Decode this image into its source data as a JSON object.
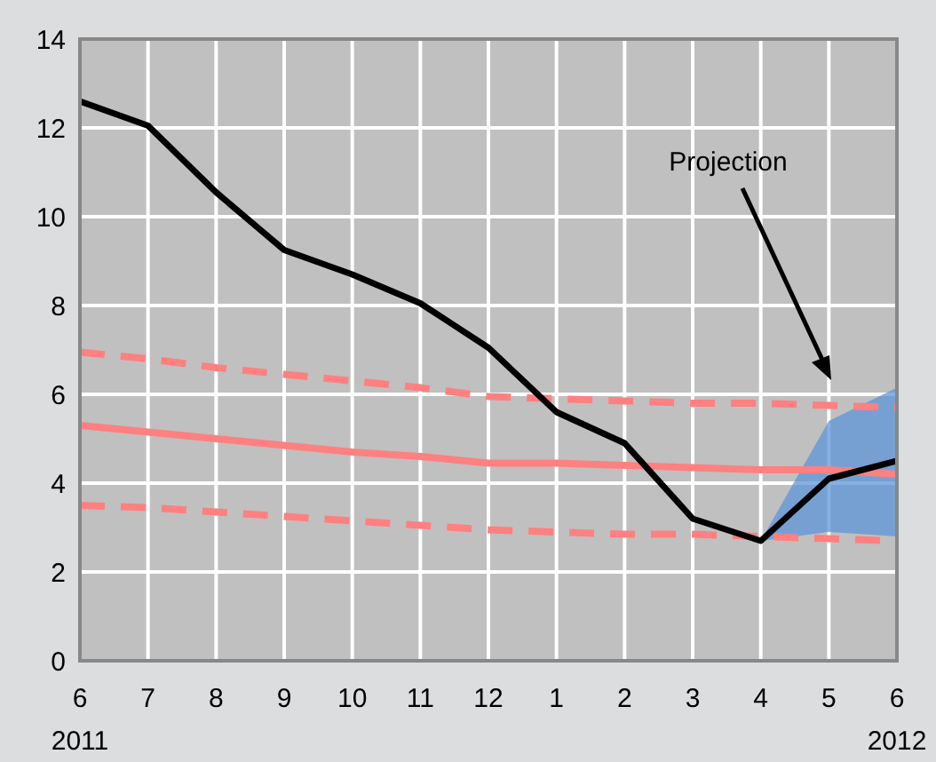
{
  "chart_data": {
    "type": "line",
    "categories": [
      "6\n2011",
      "7",
      "8",
      "9",
      "10",
      "11",
      "12",
      "1",
      "2",
      "3",
      "4",
      "5",
      "6\n2012"
    ],
    "series": [
      {
        "color": "#ff8080",
        "line_style": "dashed",
        "values": [
          6.95,
          6.8,
          6.6,
          6.45,
          6.3,
          6.15,
          5.95,
          5.9,
          5.85,
          5.8,
          5.8,
          5.75,
          5.7
        ]
      },
      {
        "color": "#ff8080",
        "line_style": "solid",
        "values": [
          5.3,
          5.15,
          5.0,
          4.85,
          4.7,
          4.6,
          4.45,
          4.45,
          4.4,
          4.35,
          4.3,
          4.3,
          4.2
        ]
      },
      {
        "color": "#ff8080",
        "line_style": "dashed",
        "values": [
          3.5,
          3.45,
          3.35,
          3.25,
          3.15,
          3.05,
          2.95,
          2.9,
          2.85,
          2.85,
          2.8,
          2.75,
          2.7
        ]
      },
      {
        "color": "#000000",
        "line_style": "solid",
        "values": [
          12.6,
          12.05,
          10.55,
          9.25,
          8.7,
          8.05,
          7.05,
          5.6,
          4.9,
          3.2,
          2.7,
          4.1,
          4.5
        ],
        "lower": [
          null,
          null,
          null,
          null,
          null,
          null,
          null,
          null,
          null,
          null,
          2.7,
          2.9,
          2.8
        ],
        "upper": [
          null,
          null,
          null,
          null,
          null,
          null,
          null,
          null,
          null,
          null,
          2.7,
          5.4,
          6.15
        ]
      }
    ],
    "ylim": [
      0,
      14
    ],
    "yticks": [
      0,
      2,
      4,
      6,
      8,
      10,
      12,
      14
    ],
    "grid": true,
    "marker": "none",
    "annotations": [
      "Projection"
    ]
  }
}
